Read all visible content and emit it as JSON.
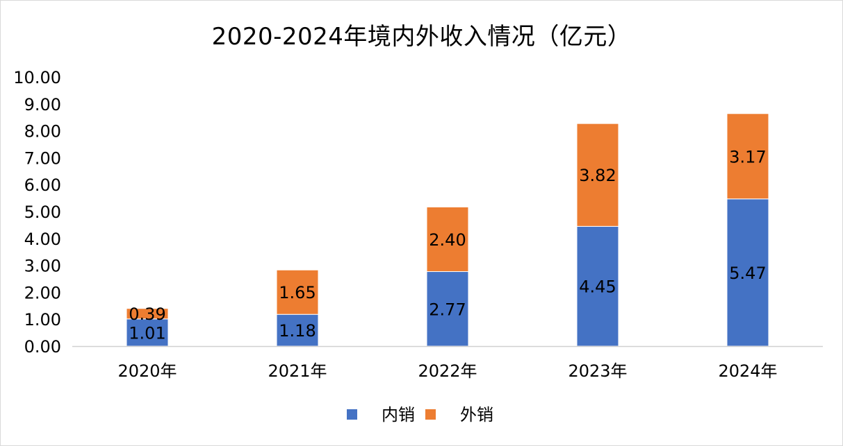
{
  "chart_data": {
    "type": "bar",
    "stacked": true,
    "title": "2020-2024年境内外收入情况（亿元）",
    "categories": [
      "2020年",
      "2021年",
      "2022年",
      "2023年",
      "2024年"
    ],
    "series": [
      {
        "name": "内销",
        "color": "#4472c4",
        "values": [
          1.01,
          1.18,
          2.77,
          4.45,
          5.47
        ],
        "labels": [
          "1.01",
          "1.18",
          "2.77",
          "4.45",
          "5.47"
        ]
      },
      {
        "name": "外销",
        "color": "#ed7d31",
        "values": [
          0.39,
          1.65,
          2.4,
          3.82,
          3.17
        ],
        "labels": [
          "0.39",
          "1.65",
          "2.40",
          "3.82",
          "3.17"
        ]
      }
    ],
    "ylim": [
      0,
      10
    ],
    "yticks": [
      "0.00",
      "1.00",
      "2.00",
      "3.00",
      "4.00",
      "5.00",
      "6.00",
      "7.00",
      "8.00",
      "9.00",
      "10.00"
    ],
    "grid": false,
    "legend": "bottom"
  }
}
